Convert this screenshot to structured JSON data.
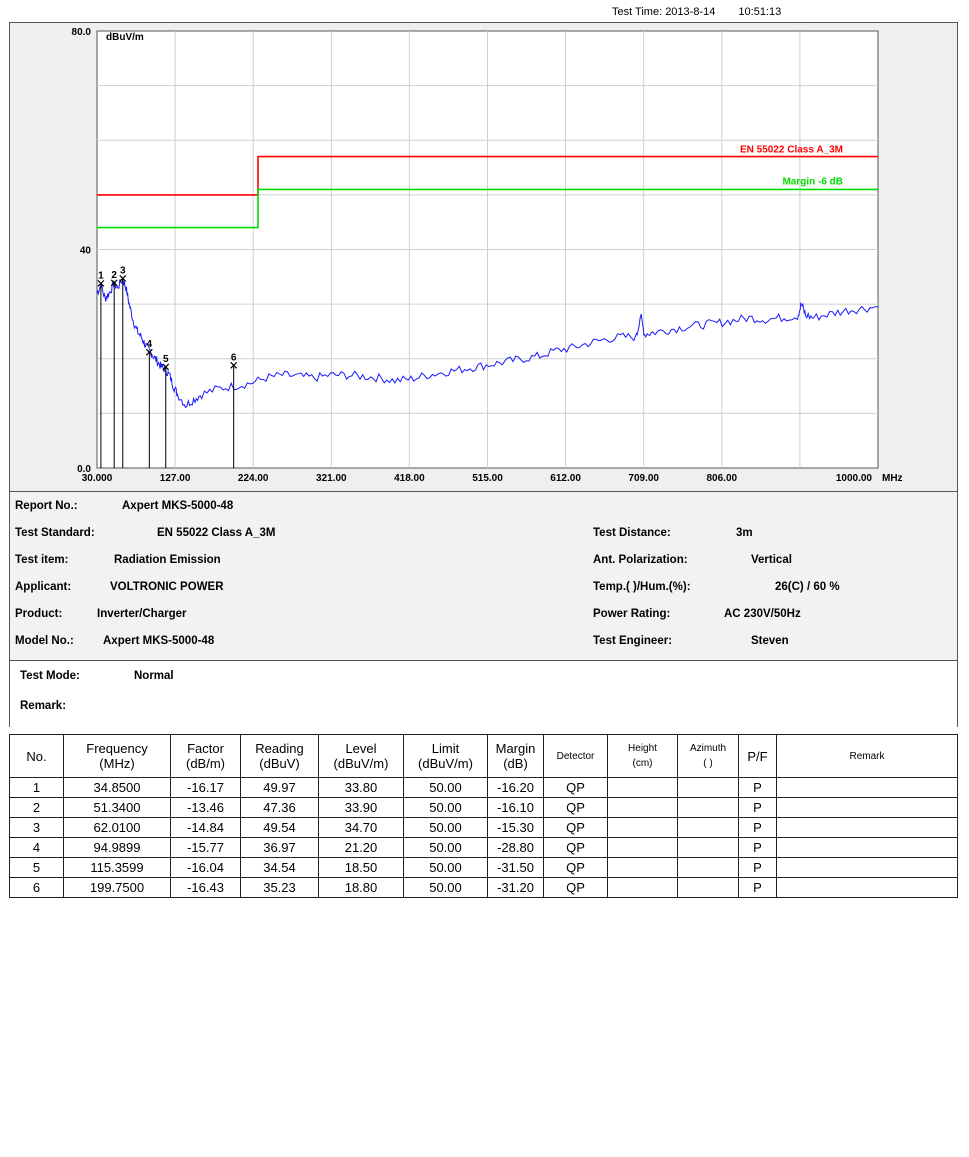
{
  "header": {
    "test_time_label": "Test Time:",
    "test_date": "2013-8-14",
    "test_clock": "10:51:13"
  },
  "chart_data": {
    "type": "line",
    "y_unit_label": "dBuV/m",
    "x_unit_label": "MHz",
    "ylim": [
      0,
      80
    ],
    "xlim": [
      30,
      1000
    ],
    "y_tick_labels": [
      "80.0",
      "40",
      "0.0"
    ],
    "x_tick_labels": [
      "30.000",
      "127.00",
      "224.00",
      "321.00",
      "418.00",
      "515.00",
      "612.00",
      "709.00",
      "806.00",
      "1000.00"
    ],
    "grid": true,
    "limit_line": {
      "name": "EN 55022 Class A_3M",
      "color": "#ff0000",
      "x": [
        30,
        230,
        230,
        1000
      ],
      "y": [
        50,
        50,
        57,
        57
      ]
    },
    "margin_line": {
      "name": "Margin -6 dB",
      "color": "#00dd00",
      "x": [
        30,
        230,
        230,
        1000
      ],
      "y": [
        44,
        44,
        51,
        51
      ]
    },
    "trace": {
      "color": "#1a1aff",
      "x": [
        30,
        35,
        40,
        45,
        51,
        55,
        62,
        66,
        70,
        75,
        80,
        85,
        90,
        95,
        100,
        105,
        110,
        115,
        120,
        125,
        130,
        140,
        150,
        160,
        180,
        200,
        220,
        240,
        260,
        280,
        300,
        320,
        340,
        360,
        380,
        400,
        420,
        440,
        460,
        480,
        500,
        520,
        540,
        560,
        580,
        600,
        620,
        640,
        660,
        680,
        700,
        705,
        710,
        720,
        740,
        760,
        780,
        800,
        820,
        840,
        860,
        880,
        900,
        905,
        910,
        920,
        940,
        960,
        980,
        1000
      ],
      "y": [
        32,
        33.5,
        31,
        32,
        33.7,
        33,
        34.5,
        33,
        30,
        27,
        25,
        24,
        22.5,
        21.5,
        20.5,
        19.5,
        18.5,
        18,
        17,
        15,
        13.5,
        11.5,
        12.5,
        13.5,
        14.5,
        15,
        15.5,
        16.5,
        17,
        16.8,
        16.5,
        17,
        17,
        16.8,
        16.5,
        16,
        16.3,
        17,
        17.5,
        18,
        18.5,
        19,
        19.5,
        20,
        20.5,
        21.5,
        22,
        22.8,
        23.5,
        24,
        24,
        28,
        24.5,
        24.8,
        25.3,
        25.8,
        26.2,
        26.5,
        27,
        27.5,
        27.2,
        27.5,
        27.8,
        30,
        28,
        27.5,
        28.2,
        28.8,
        29.2,
        29.5
      ]
    },
    "markers": [
      {
        "label": "1",
        "x": 34.85,
        "y": 33.8
      },
      {
        "label": "2",
        "x": 51.34,
        "y": 33.9
      },
      {
        "label": "3",
        "x": 62.01,
        "y": 34.7
      },
      {
        "label": "4",
        "x": 94.9899,
        "y": 21.2
      },
      {
        "label": "5",
        "x": 115.3599,
        "y": 18.5
      },
      {
        "label": "6",
        "x": 199.75,
        "y": 18.8
      }
    ]
  },
  "info": {
    "report_no_label": "Report No.:",
    "report_no": "Axpert MKS-5000-48",
    "standard_label": "Test Standard:",
    "standard": "EN 55022 Class A_3M",
    "item_label": "Test item:",
    "item": "Radiation Emission",
    "applicant_label": "Applicant:",
    "applicant": "VOLTRONIC POWER",
    "product_label": "Product:",
    "product": "Inverter/Charger",
    "model_label": "Model No.:",
    "model": "Axpert MKS-5000-48",
    "distance_label": "Test Distance:",
    "distance": "3m",
    "polarization_label": "Ant. Polarization:",
    "polarization": "Vertical",
    "temp_label": "Temp.( )/Hum.(%):",
    "temp": "26(C) / 60 %",
    "power_label": "Power Rating:",
    "power": "AC 230V/50Hz",
    "engineer_label": "Test Engineer:",
    "engineer": "Steven",
    "mode_label": "Test Mode:",
    "mode": "Normal",
    "remark_label": "Remark:"
  },
  "table": {
    "headers": [
      [
        "No."
      ],
      [
        "Frequency",
        "(MHz)"
      ],
      [
        "Factor",
        "(dB/m)"
      ],
      [
        "Reading",
        "(dBuV)"
      ],
      [
        "Level",
        "(dBuV/m)"
      ],
      [
        "Limit",
        "(dBuV/m)"
      ],
      [
        "Margin",
        "(dB)"
      ],
      [
        "Detector"
      ],
      [
        "Height",
        "(cm)"
      ],
      [
        "Azimuth",
        "( )"
      ],
      [
        "P/F"
      ],
      [
        "Remark"
      ]
    ],
    "rows": [
      [
        "1",
        "34.8500",
        "-16.17",
        "49.97",
        "33.80",
        "50.00",
        "-16.20",
        "QP",
        "",
        "",
        "P",
        ""
      ],
      [
        "2",
        "51.3400",
        "-13.46",
        "47.36",
        "33.90",
        "50.00",
        "-16.10",
        "QP",
        "",
        "",
        "P",
        ""
      ],
      [
        "3",
        "62.0100",
        "-14.84",
        "49.54",
        "34.70",
        "50.00",
        "-15.30",
        "QP",
        "",
        "",
        "P",
        ""
      ],
      [
        "4",
        "94.9899",
        "-15.77",
        "36.97",
        "21.20",
        "50.00",
        "-28.80",
        "QP",
        "",
        "",
        "P",
        ""
      ],
      [
        "5",
        "115.3599",
        "-16.04",
        "34.54",
        "18.50",
        "50.00",
        "-31.50",
        "QP",
        "",
        "",
        "P",
        ""
      ],
      [
        "6",
        "199.7500",
        "-16.43",
        "35.23",
        "18.80",
        "50.00",
        "-31.20",
        "QP",
        "",
        "",
        "P",
        ""
      ]
    ]
  }
}
